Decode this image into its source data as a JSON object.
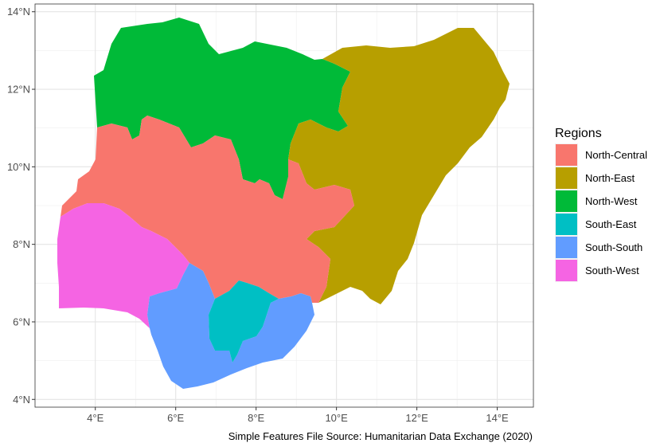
{
  "map": {
    "caption": "Simple Features File Source: Humanitarian Data Exchange (2020)",
    "legend_title": "Regions",
    "x_ticks": [
      "4°E",
      "6°E",
      "8°E",
      "10°E",
      "12°E",
      "14°E"
    ],
    "y_ticks": [
      "4°N",
      "6°N",
      "8°N",
      "10°N",
      "12°N",
      "14°N"
    ],
    "grid": true,
    "legend_placement": "right"
  },
  "chart_data": {
    "type": "choropleth",
    "x_range": [
      2.5,
      14.9
    ],
    "y_range": [
      3.8,
      14.2
    ],
    "regions": [
      {
        "name": "North-Central",
        "color": "#F8766D"
      },
      {
        "name": "North-East",
        "color": "#B79F00"
      },
      {
        "name": "North-West",
        "color": "#00BA38"
      },
      {
        "name": "South-East",
        "color": "#00BFC4"
      },
      {
        "name": "South-South",
        "color": "#619CFF"
      },
      {
        "name": "South-West",
        "color": "#F564E3"
      }
    ]
  }
}
